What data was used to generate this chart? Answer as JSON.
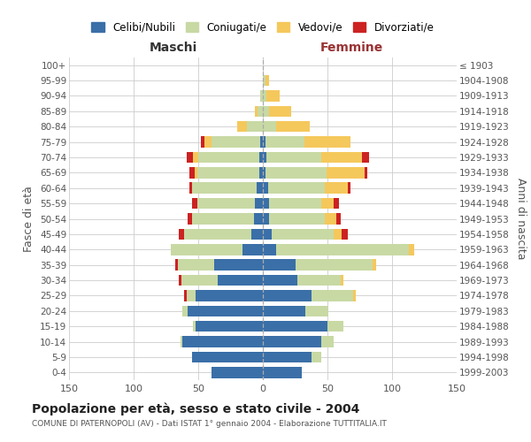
{
  "age_groups": [
    "0-4",
    "5-9",
    "10-14",
    "15-19",
    "20-24",
    "25-29",
    "30-34",
    "35-39",
    "40-44",
    "45-49",
    "50-54",
    "55-59",
    "60-64",
    "65-69",
    "70-74",
    "75-79",
    "80-84",
    "85-89",
    "90-94",
    "95-99",
    "100+"
  ],
  "birth_years": [
    "1999-2003",
    "1994-1998",
    "1989-1993",
    "1984-1988",
    "1979-1983",
    "1974-1978",
    "1969-1973",
    "1964-1968",
    "1959-1963",
    "1954-1958",
    "1949-1953",
    "1944-1948",
    "1939-1943",
    "1934-1938",
    "1929-1933",
    "1924-1928",
    "1919-1923",
    "1914-1918",
    "1909-1913",
    "1904-1908",
    "≤ 1903"
  ],
  "maschi_celibi": [
    40,
    55,
    62,
    52,
    58,
    52,
    35,
    38,
    16,
    9,
    7,
    6,
    5,
    3,
    3,
    2,
    0,
    0,
    0,
    0,
    0
  ],
  "maschi_coniugati": [
    0,
    0,
    2,
    2,
    4,
    7,
    28,
    28,
    55,
    52,
    48,
    45,
    50,
    48,
    47,
    38,
    12,
    4,
    2,
    0,
    0
  ],
  "maschi_vedovi": [
    0,
    0,
    0,
    0,
    0,
    0,
    0,
    0,
    0,
    0,
    0,
    0,
    0,
    2,
    4,
    5,
    8,
    2,
    0,
    0,
    0
  ],
  "maschi_divorziati": [
    0,
    0,
    0,
    0,
    0,
    2,
    2,
    2,
    0,
    4,
    3,
    4,
    2,
    4,
    5,
    3,
    0,
    0,
    0,
    0,
    0
  ],
  "femmine_nubili": [
    30,
    38,
    45,
    50,
    33,
    38,
    27,
    25,
    10,
    7,
    5,
    5,
    4,
    2,
    3,
    2,
    0,
    0,
    0,
    0,
    0
  ],
  "femmine_coniugate": [
    0,
    7,
    10,
    12,
    18,
    32,
    33,
    60,
    103,
    48,
    43,
    40,
    44,
    47,
    42,
    30,
    10,
    5,
    3,
    2,
    0
  ],
  "femmine_vedove": [
    0,
    0,
    0,
    0,
    0,
    2,
    2,
    3,
    4,
    6,
    9,
    10,
    18,
    30,
    32,
    36,
    26,
    17,
    10,
    3,
    0
  ],
  "femmine_divorziate": [
    0,
    0,
    0,
    0,
    0,
    0,
    0,
    0,
    0,
    5,
    3,
    4,
    2,
    2,
    5,
    0,
    0,
    0,
    0,
    0,
    0
  ],
  "color_celibi": "#3A6FA8",
  "color_coniugati": "#C8D9A4",
  "color_vedovi": "#F5C85C",
  "color_divorziati": "#CC2222",
  "xlim": 150,
  "title": "Popolazione per età, sesso e stato civile - 2004",
  "subtitle": "COMUNE DI PATERNOPOLI (AV) - Dati ISTAT 1° gennaio 2004 - Elaborazione TUTTITALIA.IT",
  "ylabel_left": "Fasce di età",
  "ylabel_right": "Anni di nascita",
  "legend_labels": [
    "Celibi/Nubili",
    "Coniugati/e",
    "Vedovi/e",
    "Divorziati/e"
  ],
  "maschi_label": "Maschi",
  "femmine_label": "Femmine",
  "maschi_label_color": "#333333",
  "femmine_label_color": "#993333"
}
